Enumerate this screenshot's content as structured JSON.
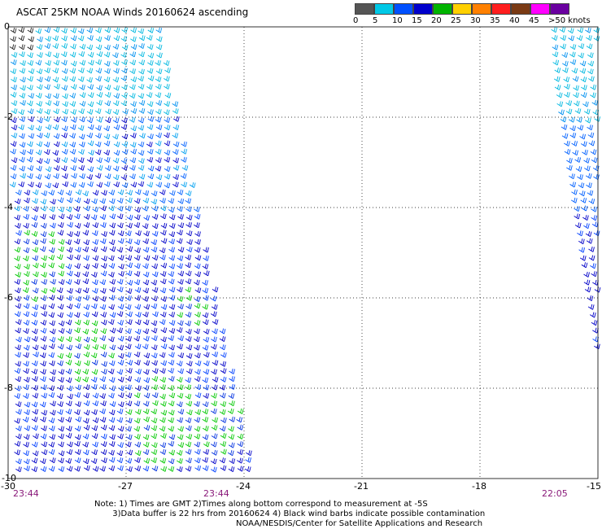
{
  "title": "ASCAT 25KM NOAA Winds 20160624 ascending",
  "legend": {
    "labels": [
      "0",
      "5",
      "10",
      "15",
      "20",
      "25",
      "30",
      "35",
      "40",
      "45",
      ">50 knots"
    ],
    "colors": [
      "#555555",
      "#00c8e6",
      "#0050ff",
      "#0000cc",
      "#00b400",
      "#ffd000",
      "#ff8000",
      "#ff1e1e",
      "#7a3a14",
      "#ff00ff",
      "#6a00a0"
    ]
  },
  "axes": {
    "y_ticks": [
      "0",
      "-2",
      "-4",
      "-6",
      "-8",
      "-10"
    ],
    "x_ticks": [
      "-30",
      "-27",
      "-24",
      "-21",
      "-18",
      "-15"
    ],
    "time_labels": [
      "23:44",
      "23:44",
      "22:05"
    ]
  },
  "note": "Note: 1) Times are GMT 2)Times along bottom correspond to measurement at -5S\n       3)Data buffer is 22 hrs from 20160624 4) Black wind barbs indicate possible contamination",
  "credit": "NOAA/NESDIS/Center for Satellite Applications and Research",
  "swaths": {
    "left": {
      "lon_min": -30,
      "lon_east_top": -26.2,
      "lon_east_bottom": -23.8
    },
    "right": {
      "lon_west_top": -16.2,
      "lon_west_bottom": -15.3
    }
  }
}
